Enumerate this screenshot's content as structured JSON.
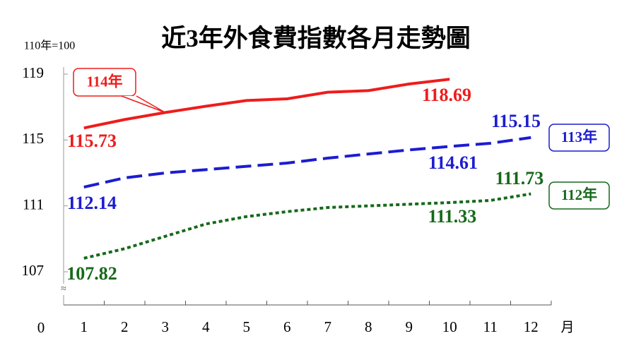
{
  "chart_data": {
    "type": "line",
    "title": "近3年外食費指數各月走勢圖",
    "y_unit": "110年=100",
    "x_unit": "月",
    "y_origin": 0,
    "categories": [
      "1",
      "2",
      "3",
      "4",
      "5",
      "6",
      "7",
      "8",
      "9",
      "10",
      "11",
      "12"
    ],
    "ylim": [
      107,
      119
    ],
    "yticks": [
      107,
      111,
      115,
      119
    ],
    "series": [
      {
        "name": "114年",
        "color": "#ee1c1c",
        "style": "solid",
        "values": [
          115.73,
          116.24,
          116.67,
          117.05,
          117.4,
          117.5,
          117.9,
          118.0,
          118.4,
          118.69,
          null,
          null
        ],
        "value_labels": [
          "115.73",
          null,
          null,
          null,
          null,
          null,
          null,
          null,
          null,
          "118.69",
          null,
          null
        ]
      },
      {
        "name": "113年",
        "color": "#1c1cd0",
        "style": "dashed",
        "values": [
          112.14,
          112.7,
          113.0,
          113.2,
          113.4,
          113.6,
          113.9,
          114.15,
          114.4,
          114.61,
          114.8,
          115.15
        ],
        "value_labels": [
          "112.14",
          null,
          null,
          null,
          null,
          null,
          null,
          null,
          null,
          "114.61",
          null,
          "115.15"
        ]
      },
      {
        "name": "112年",
        "color": "#16691a",
        "style": "dotted",
        "values": [
          107.82,
          108.4,
          109.15,
          109.9,
          110.35,
          110.65,
          110.9,
          111.0,
          111.1,
          111.2,
          111.33,
          111.73
        ],
        "value_labels": [
          "107.82",
          null,
          null,
          null,
          null,
          null,
          null,
          null,
          null,
          null,
          "111.33",
          "111.73"
        ]
      }
    ]
  }
}
